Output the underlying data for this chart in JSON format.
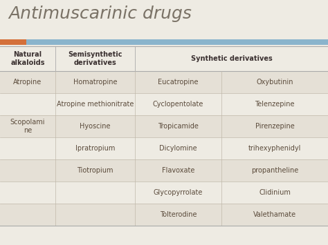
{
  "title": "Antimuscarinic drugs",
  "title_color": "#7a7266",
  "title_fontsize": 18,
  "bg_color": "#eeebe3",
  "header_bar_orange": "#d4703a",
  "header_bar_blue": "#8ab4cc",
  "odd_row_bg": "#e5e0d6",
  "even_row_bg": "#eeebe3",
  "col_headers": [
    "Natural\nalkaloids",
    "Semisynthetic\nderivatives",
    "Synthetic derivatives"
  ],
  "col_header_fontsize": 7,
  "cell_fontsize": 7,
  "text_color": "#5a4a3a",
  "header_text_color": "#3a3030",
  "rows": [
    [
      "Atropine",
      "Homatropine",
      "Eucatropine",
      "Oxybutinin"
    ],
    [
      "",
      "Atropine methionitrate",
      "Cyclopentolate",
      "Telenzepine"
    ],
    [
      "Scopolami\nne",
      "Hyoscine",
      "Tropicamide",
      "Pirenzepine"
    ],
    [
      "",
      "Ipratropium",
      "Dicylomine",
      "trihexyphenidyl"
    ],
    [
      "",
      "Tiotropium",
      "Flavoxate",
      "propantheline"
    ],
    [
      "",
      "",
      "Glycopyrrolate",
      "Clidinium"
    ],
    [
      "",
      "",
      "Tolterodine",
      "Valethamate"
    ]
  ]
}
